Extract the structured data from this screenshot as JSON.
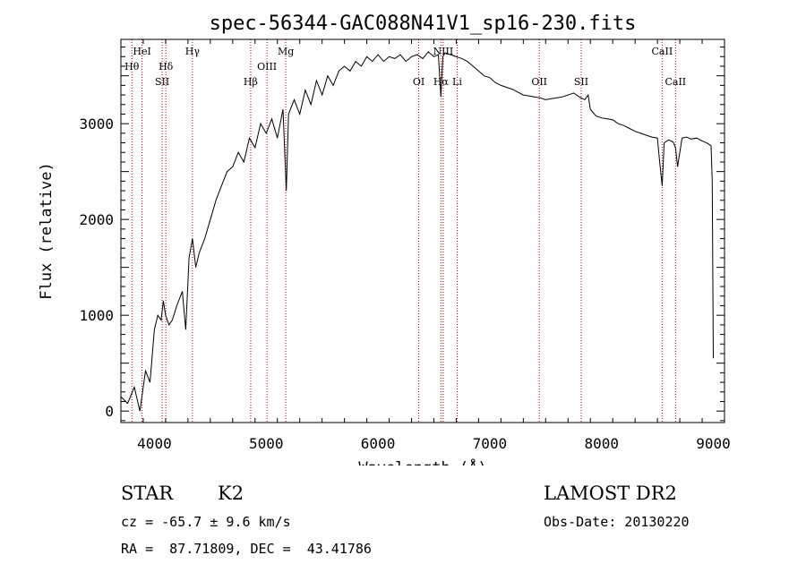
{
  "chart_data": {
    "type": "line",
    "title": "spec-56344-GAC088N41V1_sp16-230.fits",
    "xlabel": "Wavelength (Å)",
    "ylabel": "Flux (relative)",
    "xlim": [
      3700,
      9100
    ],
    "ylim": [
      -120,
      3880
    ],
    "xticks": [
      4000,
      5000,
      6000,
      7000,
      8000,
      9000
    ],
    "yticks": [
      0,
      1000,
      2000,
      3000
    ],
    "grid": false,
    "series": [
      {
        "x": [
          3700,
          3760,
          3820,
          3870,
          3920,
          3960,
          4000,
          4030,
          4060,
          4080,
          4100,
          4130,
          4160,
          4200,
          4250,
          4280,
          4310,
          4340,
          4370,
          4400,
          4450,
          4500,
          4550,
          4600,
          4650,
          4700,
          4750,
          4800,
          4850,
          4900,
          4950,
          5000,
          5050,
          5100,
          5150,
          5180,
          5200,
          5250,
          5300,
          5350,
          5400,
          5450,
          5500,
          5550,
          5600,
          5650,
          5700,
          5750,
          5800,
          5850,
          5900,
          5950,
          6000,
          6050,
          6100,
          6150,
          6200,
          6250,
          6300,
          6350,
          6400,
          6450,
          6500,
          6540,
          6563,
          6580,
          6600,
          6650,
          6700,
          6750,
          6800,
          6850,
          6900,
          6950,
          7000,
          7050,
          7100,
          7150,
          7200,
          7250,
          7300,
          7350,
          7400,
          7450,
          7500,
          7550,
          7600,
          7650,
          7700,
          7750,
          7800,
          7850,
          7880,
          7900,
          7950,
          8000,
          8050,
          8100,
          8150,
          8200,
          8250,
          8300,
          8350,
          8400,
          8450,
          8500,
          8520,
          8542,
          8560,
          8600,
          8640,
          8662,
          8680,
          8720,
          8760,
          8800,
          8850,
          8900,
          8940,
          8980,
          8990,
          9000
        ],
        "y": [
          150,
          80,
          250,
          0,
          420,
          300,
          850,
          1000,
          950,
          1150,
          1000,
          900,
          950,
          1100,
          1250,
          850,
          1600,
          1800,
          1500,
          1650,
          1800,
          2000,
          2200,
          2350,
          2500,
          2550,
          2700,
          2600,
          2850,
          2750,
          3000,
          2900,
          3050,
          2850,
          3150,
          2300,
          3100,
          3250,
          3100,
          3350,
          3200,
          3450,
          3300,
          3500,
          3400,
          3550,
          3600,
          3550,
          3650,
          3600,
          3700,
          3650,
          3720,
          3650,
          3700,
          3680,
          3720,
          3650,
          3700,
          3720,
          3680,
          3750,
          3700,
          3720,
          3280,
          3700,
          3740,
          3720,
          3700,
          3680,
          3650,
          3600,
          3550,
          3500,
          3480,
          3430,
          3400,
          3380,
          3360,
          3330,
          3300,
          3290,
          3280,
          3270,
          3250,
          3260,
          3270,
          3280,
          3300,
          3320,
          3280,
          3250,
          3300,
          3150,
          3080,
          3060,
          3050,
          3040,
          3000,
          2980,
          2950,
          2920,
          2900,
          2880,
          2860,
          2850,
          2600,
          2350,
          2800,
          2830,
          2810,
          2750,
          2550,
          2850,
          2860,
          2840,
          2850,
          2820,
          2800,
          2770,
          2400,
          550
        ]
      }
    ],
    "lines_top": [
      {
        "label": "HeI",
        "x": 3889
      },
      {
        "label": "Hγ",
        "x": 4340
      },
      {
        "label": "Mg",
        "x": 5175
      },
      {
        "label": "NIII",
        "x": 6583
      },
      {
        "label": "CaII",
        "x": 8542
      }
    ],
    "lines_mid": [
      {
        "label": "Hθ",
        "x": 3798
      },
      {
        "label": "Hδ",
        "x": 4102
      },
      {
        "label": "OIII",
        "x": 5007
      }
    ],
    "lines_low": [
      {
        "label": "SII",
        "x": 4069
      },
      {
        "label": "Hβ",
        "x": 4861
      },
      {
        "label": "OI",
        "x": 6364
      },
      {
        "label": "Hα",
        "x": 6563
      },
      {
        "label": "Li",
        "x": 6708
      },
      {
        "label": "OII",
        "x": 7443
      },
      {
        "label": "SII",
        "x": 7818
      },
      {
        "label": "CaII",
        "x": 8662
      }
    ],
    "line_color": "#000000",
    "marker_color": "#aa0000"
  },
  "info": {
    "object": "STAR",
    "subclass": "K2",
    "survey": "LAMOST DR2",
    "cz": "cz = -65.7 ± 9.6 km/s",
    "obs_date": "Obs-Date: 20130220",
    "coords": "RA =  87.71809, DEC =  43.41786"
  }
}
